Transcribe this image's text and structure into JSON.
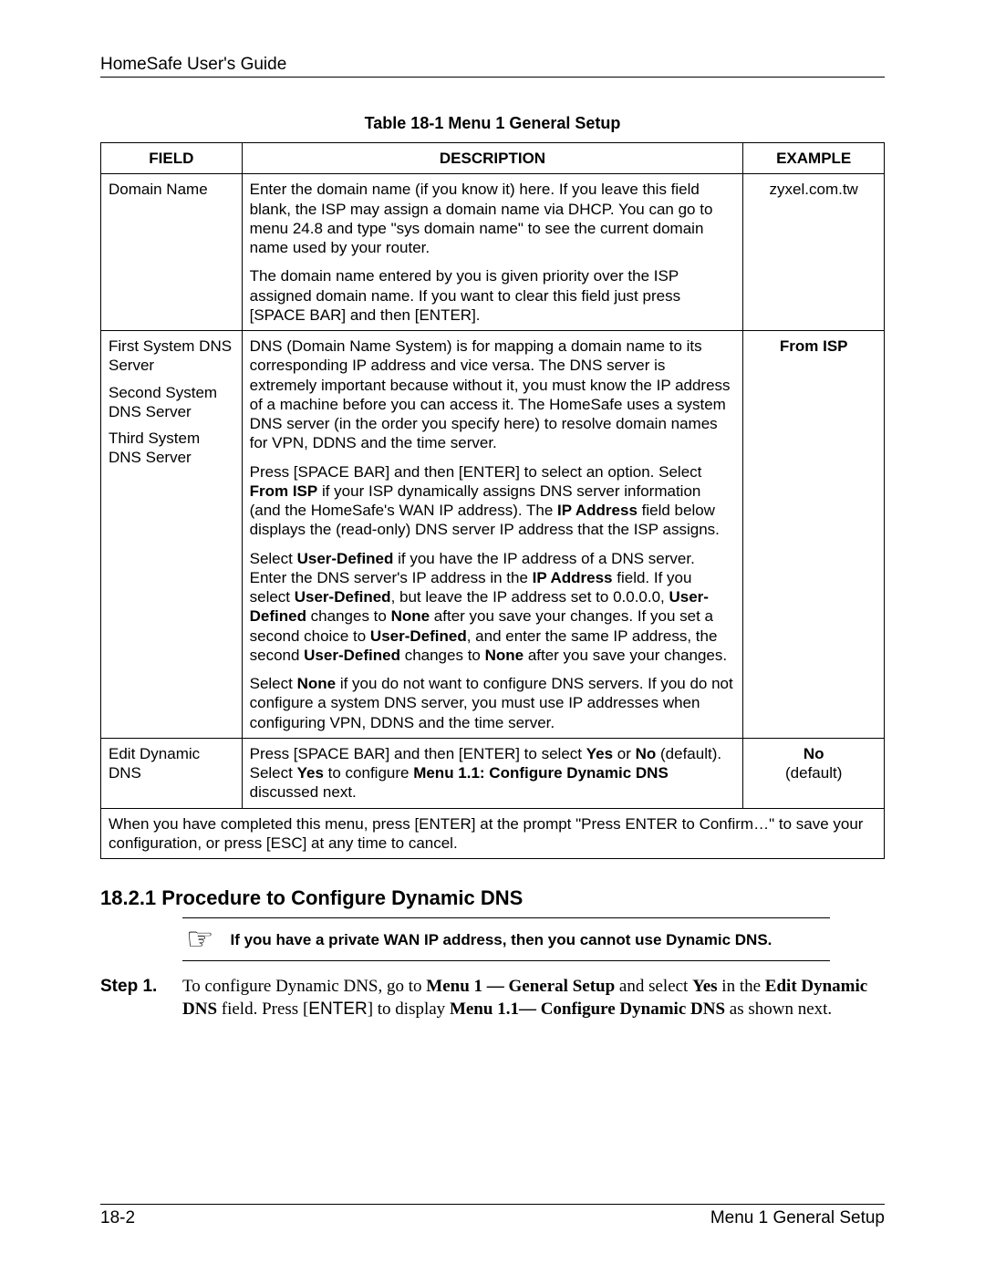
{
  "header": {
    "title": "HomeSafe User's Guide"
  },
  "table": {
    "caption": "Table 18-1 Menu 1 General Setup",
    "columns": {
      "field": "FIELD",
      "description": "DESCRIPTION",
      "example": "EXAMPLE"
    },
    "col_widths_pct": [
      18,
      64,
      18
    ],
    "border_color": "#000000",
    "font_size_pt": 13,
    "rows": [
      {
        "field": [
          "Domain Name"
        ],
        "description": [
          "Enter the domain name (if you know it) here. If you leave this field blank, the ISP may assign a domain name via DHCP. You can go to menu 24.8 and type \"sys domain name\" to see the current domain name used by your router.",
          "The domain name entered by you is given priority over the ISP assigned domain name. If you want to clear this field just press [SPACE BAR] and then [ENTER]."
        ],
        "example_bold": "",
        "example_plain": "zyxel.com.tw"
      },
      {
        "field": [
          "First System DNS Server",
          "Second System DNS Server",
          "Third System DNS Server"
        ],
        "description_runs": [
          [
            {
              "t": "DNS (Domain Name System) is for mapping a domain name to its corresponding IP address and vice versa. The DNS server is extremely important because without it, you must know the IP address of a machine before you can access it. The HomeSafe uses a system DNS server (in the order you specify here) to resolve domain names for VPN, DDNS and the time server."
            }
          ],
          [
            {
              "t": "Press [SPACE BAR] and then [ENTER] to select an option. Select "
            },
            {
              "t": "From ISP",
              "b": true
            },
            {
              "t": " if your ISP dynamically assigns DNS server information (and the HomeSafe's WAN IP address). The "
            },
            {
              "t": "IP Address",
              "b": true
            },
            {
              "t": " field below displays the (read-only) DNS server IP address that the ISP assigns."
            }
          ],
          [
            {
              "t": "Select "
            },
            {
              "t": "User-Defined",
              "b": true
            },
            {
              "t": " if you have the IP address of a DNS server. Enter the DNS server's IP address in the "
            },
            {
              "t": "IP Address",
              "b": true
            },
            {
              "t": " field. If you select "
            },
            {
              "t": "User-Defined",
              "b": true
            },
            {
              "t": ", but leave the IP address set to 0.0.0.0, "
            },
            {
              "t": "User-Defined",
              "b": true
            },
            {
              "t": " changes to "
            },
            {
              "t": "None",
              "b": true
            },
            {
              "t": " after you save your changes. If you set a second choice to "
            },
            {
              "t": "User-Defined",
              "b": true
            },
            {
              "t": ", and enter the same IP address, the second "
            },
            {
              "t": "User-Defined",
              "b": true
            },
            {
              "t": " changes to "
            },
            {
              "t": "None",
              "b": true
            },
            {
              "t": " after you save your changes."
            }
          ],
          [
            {
              "t": "Select "
            },
            {
              "t": "None",
              "b": true
            },
            {
              "t": " if you do not want to configure DNS servers. If you do not configure a system DNS server, you must use IP addresses when configuring VPN, DDNS and the time server."
            }
          ]
        ],
        "example_bold": "From ISP",
        "example_plain": ""
      },
      {
        "field": [
          "Edit Dynamic DNS"
        ],
        "description_runs": [
          [
            {
              "t": "Press [SPACE BAR] and then [ENTER] to select "
            },
            {
              "t": "Yes",
              "b": true
            },
            {
              "t": " or "
            },
            {
              "t": "No",
              "b": true
            },
            {
              "t": " (default). Select "
            },
            {
              "t": "Yes",
              "b": true
            },
            {
              "t": " to configure "
            },
            {
              "t": "Menu 1.1: Configure Dynamic DNS",
              "b": true
            },
            {
              "t": " discussed next."
            }
          ]
        ],
        "example_bold": "No",
        "example_plain": "(default)"
      }
    ],
    "footer_note": "When you have completed this menu, press [ENTER] at the prompt \"Press ENTER to Confirm…\" to save your configuration, or press [ESC] at any time to cancel."
  },
  "section": {
    "heading": "18.2.1 Procedure to Configure Dynamic DNS",
    "note_icon": "☞",
    "note_text": "If you have a private WAN IP address, then you cannot use Dynamic DNS.",
    "step_label": "Step 1.",
    "step_runs": [
      {
        "t": "To configure Dynamic DNS, go to "
      },
      {
        "t": "Menu 1 — General Setup",
        "b": true
      },
      {
        "t": " and select "
      },
      {
        "t": "Yes",
        "b": true
      },
      {
        "t": " in the "
      },
      {
        "t": "Edit Dynamic DNS",
        "b": true
      },
      {
        "t": " field. Press ["
      },
      {
        "t": "ENTER",
        "sans": true
      },
      {
        "t": "] to display "
      },
      {
        "t": "Menu 1.1— Configure Dynamic DNS",
        "b": true
      },
      {
        "t": " as shown next."
      }
    ]
  },
  "footer": {
    "left": "18-2",
    "right": "Menu 1 General Setup"
  },
  "style": {
    "page_bg": "#ffffff",
    "text_color": "#000000",
    "rule_color": "#000000",
    "body_font_pt": 14,
    "heading_font_pt": 17
  }
}
